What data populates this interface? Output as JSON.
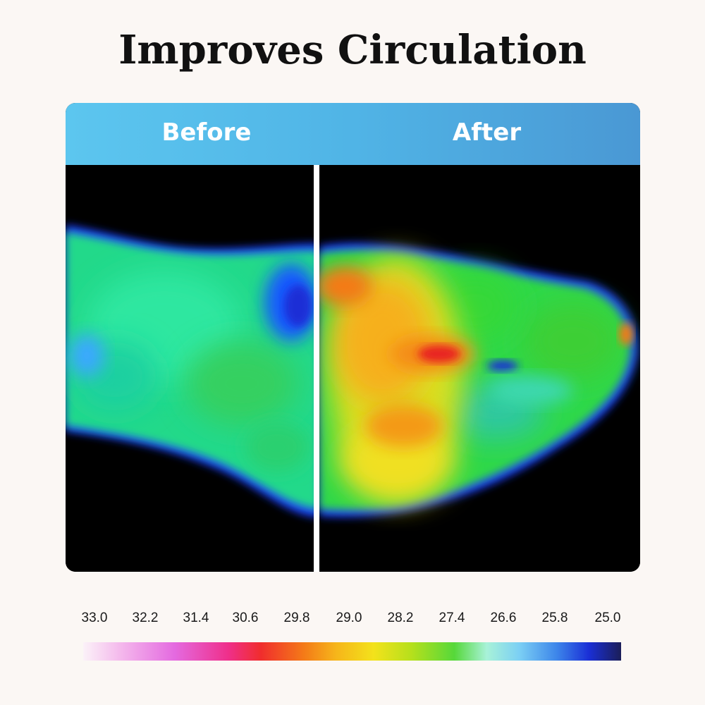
{
  "title": "Improves Circulation",
  "panels": {
    "before_label": "Before",
    "after_label": "After"
  },
  "temperature_scale": {
    "labels": [
      "33.0",
      "32.2",
      "31.4",
      "30.6",
      "29.8",
      "29.0",
      "28.2",
      "27.4",
      "26.6",
      "25.8",
      "25.0"
    ]
  },
  "colors": {
    "header_gradient": [
      "#5cc6ef",
      "#4a98d4"
    ],
    "background": "#fbf7f4",
    "thermal_background": "#000000"
  }
}
